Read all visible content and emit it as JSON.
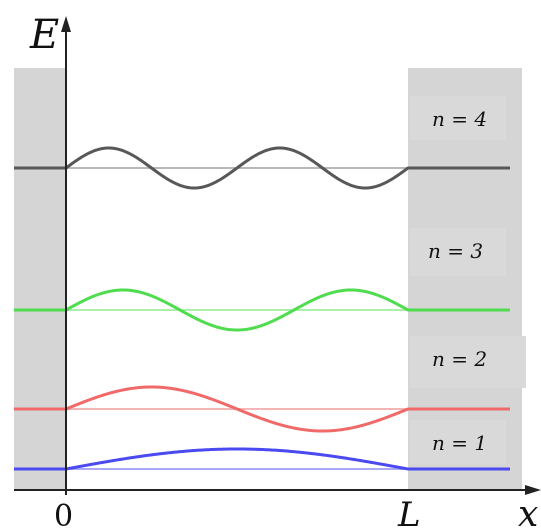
{
  "axes": {
    "y_label": "E",
    "x_label": "x",
    "origin_label": "0",
    "well_edge_label": "L"
  },
  "levels": [
    {
      "n": 1,
      "label": "n = 1",
      "color": "#4a4af0",
      "baseline_color": "#a9a9f6"
    },
    {
      "n": 2,
      "label": "n = 2",
      "color": "#f06a6a",
      "baseline_color": "#f5b5b5"
    },
    {
      "n": 3,
      "label": "n = 3",
      "color": "#4fdc4f",
      "baseline_color": "#aaf0aa"
    },
    {
      "n": 4,
      "label": "n = 4",
      "color": "#585858",
      "baseline_color": "#b8b8b8"
    }
  ],
  "colors": {
    "wall_fill": "#d5d5d5",
    "axis": "#222222"
  }
}
